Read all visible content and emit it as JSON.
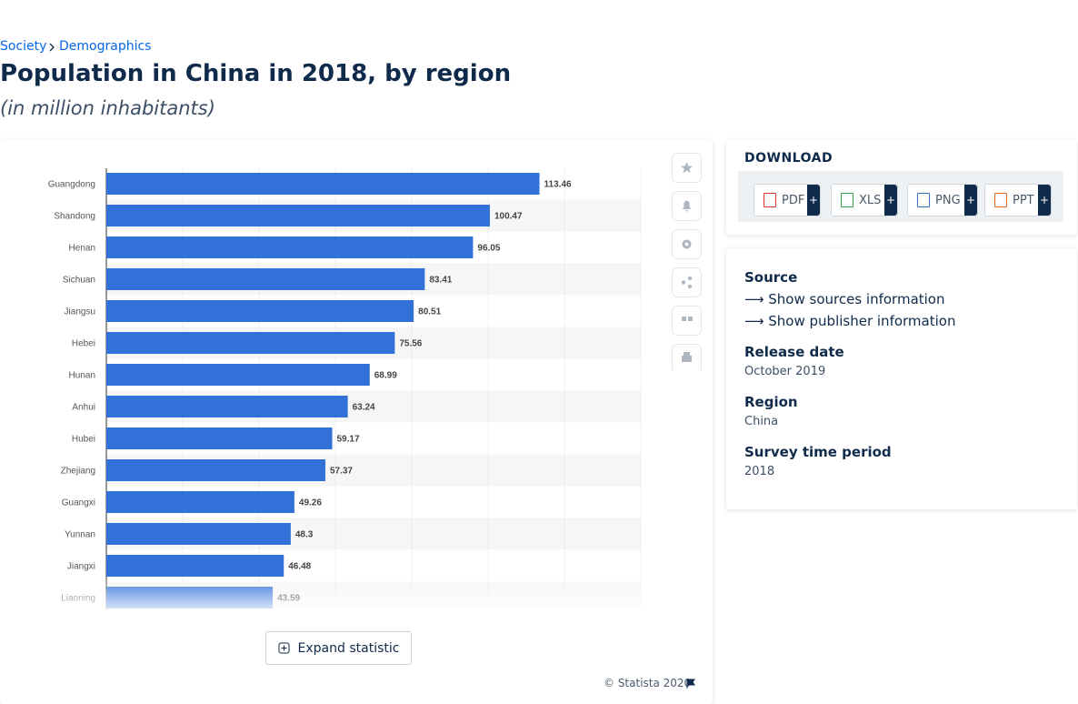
{
  "breadcrumb": [
    "Society",
    "Demographics"
  ],
  "title": "Population in China in 2018, by region",
  "subtitle": "(in million inhabitants)",
  "chart_data": {
    "type": "bar",
    "orientation": "horizontal",
    "categories": [
      "Guangdong",
      "Shandong",
      "Henan",
      "Sichuan",
      "Jiangsu",
      "Hebei",
      "Hunan",
      "Anhui",
      "Hubei",
      "Zhejiang",
      "Guangxi",
      "Yunnan",
      "Jiangxi",
      "Liaoning"
    ],
    "values": [
      113.46,
      100.47,
      96.05,
      83.41,
      80.51,
      75.56,
      68.99,
      63.24,
      59.17,
      57.37,
      49.26,
      48.3,
      46.48,
      43.59
    ],
    "color": "#3271d8",
    "xlim": [
      0,
      140
    ],
    "xticks": [
      0,
      20,
      40,
      60,
      80,
      100,
      120,
      140
    ],
    "grid": true
  },
  "expand_button": "Expand statistic",
  "copyright": "© Statista 2020",
  "download": {
    "title": "DOWNLOAD",
    "formats": [
      "PDF",
      "XLS",
      "PNG",
      "PPT"
    ],
    "plus": "+"
  },
  "details": {
    "source_heading": "Source",
    "links": [
      "Show sources information",
      "Show publisher information"
    ],
    "items": [
      {
        "label": "Release date",
        "value": "October 2019"
      },
      {
        "label": "Region",
        "value": "China"
      },
      {
        "label": "Survey time period",
        "value": "2018"
      }
    ]
  }
}
